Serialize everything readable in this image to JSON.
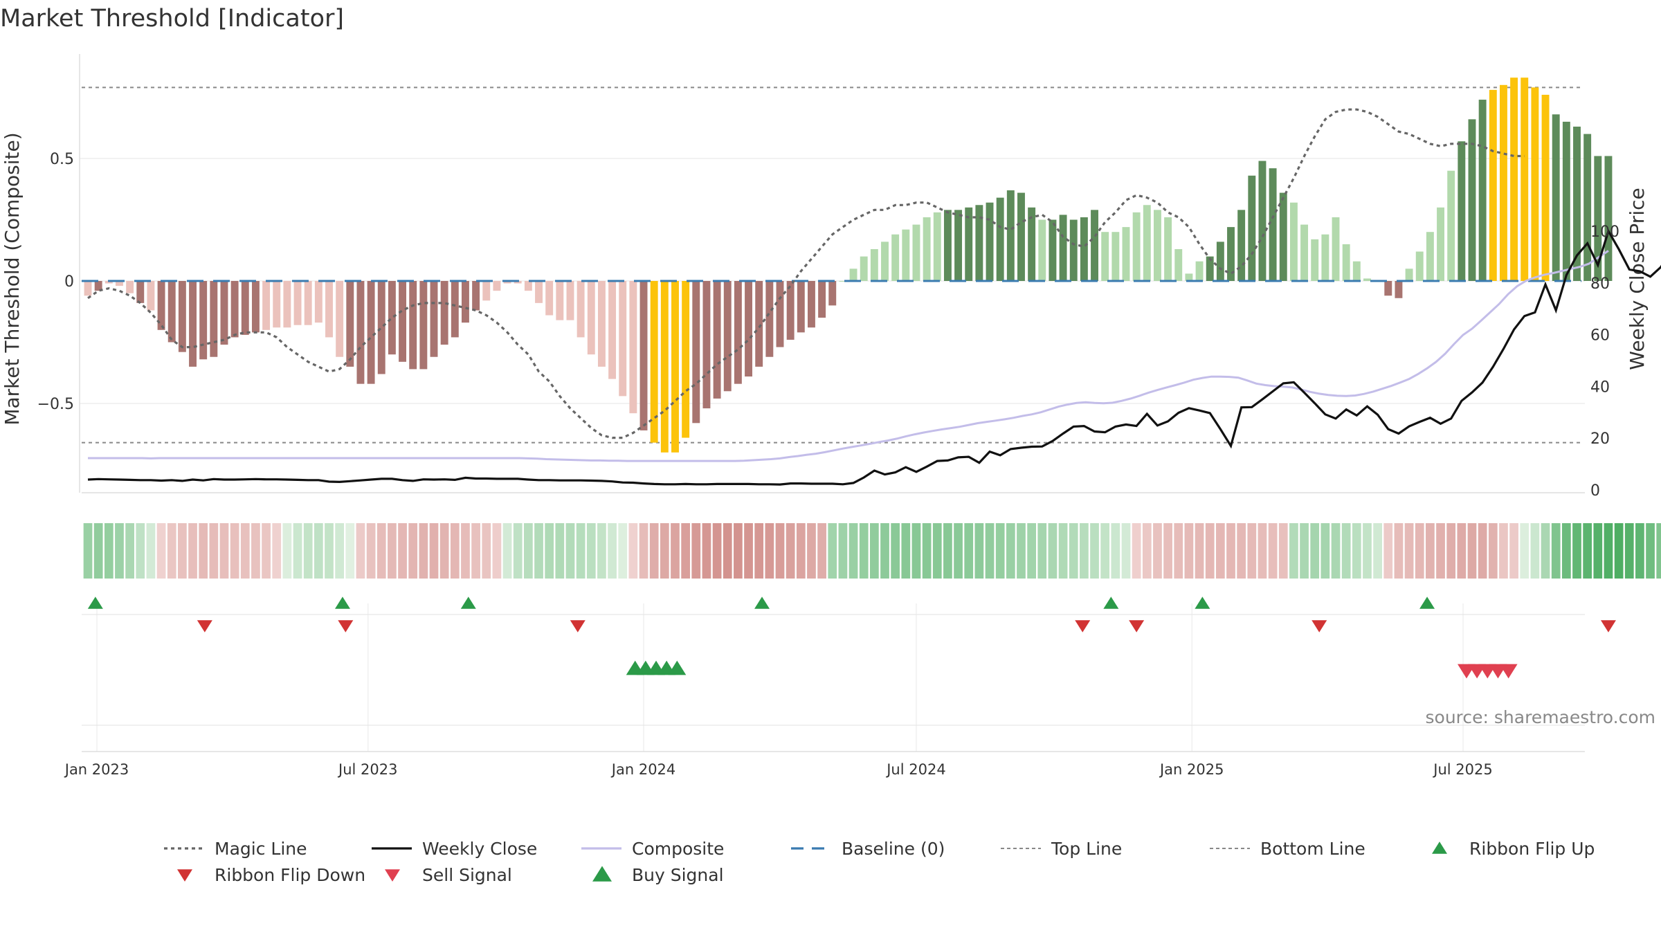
{
  "chart_data": {
    "type": "bar",
    "title": "Market Threshold [Indicator]",
    "source": "source: sharemaestro.com",
    "left_axis": {
      "label": "Market Threshold (Composite)",
      "ticks": [
        0.5,
        0,
        -0.5
      ],
      "tick_labels": [
        "0.5",
        "0",
        "−0.5"
      ],
      "ylim": [
        -0.86,
        0.92
      ]
    },
    "right_axis": {
      "label": "Weekly Close Price",
      "ticks": [
        0,
        20,
        40,
        60,
        80,
        100
      ],
      "tick_labels": [
        "0",
        "20",
        "40",
        "60",
        "80",
        "100"
      ],
      "ylim": [
        0,
        111
      ]
    },
    "x_axis": {
      "start": "2022-12-26",
      "step_days": 7,
      "ticks": [
        {
          "date": "2023-01-01",
          "label": "Jan 2023"
        },
        {
          "date": "2023-07-01",
          "label": "Jul 2023"
        },
        {
          "date": "2024-01-01",
          "label": "Jan 2024"
        },
        {
          "date": "2024-07-01",
          "label": "Jul 2024"
        },
        {
          "date": "2025-01-01",
          "label": "Jan 2025"
        },
        {
          "date": "2025-07-01",
          "label": "Jul 2025"
        }
      ]
    },
    "reference_lines": {
      "top": 0.79,
      "bottom": -0.66,
      "baseline": 0
    },
    "colors": {
      "neg_strong": "#a87470",
      "neg_weak": "#ebc2bc",
      "pos_strong": "#5d8b5a",
      "pos_weak": "#b2d9ac",
      "extreme": "#fcc30b",
      "close": "#111111",
      "composite": "#c3bde9",
      "magic": "#666666",
      "baseline": "#3a7bb0",
      "ref": "#888888",
      "flip_up": "#2b9a48",
      "flip_down": "#d13333",
      "sell": "#e04050",
      "buy": "#2b9a48"
    },
    "composite_values": [
      -0.06,
      -0.04,
      -0.01,
      -0.02,
      -0.05,
      -0.09,
      -0.12,
      -0.2,
      -0.25,
      -0.29,
      -0.35,
      -0.32,
      -0.31,
      -0.26,
      -0.23,
      -0.22,
      -0.21,
      -0.2,
      -0.19,
      -0.19,
      -0.18,
      -0.18,
      -0.17,
      -0.23,
      -0.31,
      -0.35,
      -0.42,
      -0.42,
      -0.38,
      -0.3,
      -0.33,
      -0.36,
      -0.36,
      -0.31,
      -0.26,
      -0.23,
      -0.17,
      -0.12,
      -0.08,
      -0.04,
      -0.01,
      -0.01,
      -0.04,
      -0.09,
      -0.14,
      -0.16,
      -0.16,
      -0.23,
      -0.3,
      -0.35,
      -0.4,
      -0.47,
      -0.54,
      -0.61,
      -0.66,
      -0.7,
      -0.7,
      -0.64,
      -0.58,
      -0.52,
      -0.48,
      -0.45,
      -0.42,
      -0.39,
      -0.35,
      -0.31,
      -0.27,
      -0.24,
      -0.21,
      -0.19,
      -0.15,
      -0.1,
      0,
      0.05,
      0.1,
      0.13,
      0.16,
      0.19,
      0.21,
      0.23,
      0.26,
      0.28,
      0.29,
      0.29,
      0.3,
      0.31,
      0.32,
      0.34,
      0.37,
      0.36,
      0.3,
      0.25,
      0.25,
      0.27,
      0.25,
      0.26,
      0.29,
      0.2,
      0.2,
      0.22,
      0.28,
      0.31,
      0.29,
      0.26,
      0.13,
      0.03,
      0.08,
      0.1,
      0.16,
      0.22,
      0.29,
      0.43,
      0.49,
      0.46,
      0.36,
      0.32,
      0.23,
      0.17,
      0.19,
      0.26,
      0.15,
      0.08,
      0.01,
      0,
      -0.06,
      -0.07,
      0.05,
      0.12,
      0.2,
      0.3,
      0.45,
      0.57,
      0.66,
      0.74,
      0.78,
      0.8,
      0.83,
      0.83,
      0.79,
      0.76,
      0.68,
      0.65,
      0.63,
      0.6,
      0.51,
      0.51
    ],
    "weekly_close": [
      4,
      4.2,
      4.1,
      4,
      3.9,
      3.8,
      3.8,
      3.6,
      3.8,
      3.5,
      4,
      3.7,
      4.2,
      4,
      4,
      4.1,
      4.2,
      4.1,
      4.1,
      4,
      3.9,
      3.8,
      3.8,
      3.2,
      3.1,
      3.4,
      3.7,
      4,
      4.3,
      4.3,
      3.8,
      3.5,
      4.1,
      4,
      4.1,
      3.9,
      4.7,
      4.4,
      4.4,
      4.3,
      4.3,
      4.3,
      4,
      3.8,
      3.8,
      3.7,
      3.7,
      3.7,
      3.6,
      3.5,
      3.3,
      2.9,
      2.8,
      2.5,
      2.3,
      2.2,
      2.2,
      2.3,
      2.2,
      2.2,
      2.3,
      2.3,
      2.3,
      2.3,
      2.2,
      2.2,
      2.1,
      2.5,
      2.5,
      2.4,
      2.4,
      2.4,
      2.2,
      2.7,
      4.8,
      7.5,
      6,
      6.8,
      8.8,
      7,
      9,
      11.2,
      11.4,
      12.6,
      12.8,
      10.5,
      14.8,
      13.4,
      15.8,
      16.3,
      16.7,
      16.8,
      18.9,
      21.8,
      24.5,
      24.7,
      22.6,
      22.3,
      24.5,
      25.3,
      24.7,
      29.4,
      24.9,
      26.5,
      29.8,
      31.6,
      30.7,
      29.7,
      23.5,
      17,
      31.9,
      32,
      35,
      38.1,
      41.2,
      41.6,
      37.6,
      33.5,
      29.2,
      27.6,
      31.1,
      28.8,
      32.3,
      29.1,
      23.5,
      21.8,
      24.6,
      26.3,
      27.9,
      25.6,
      27.6,
      34.4,
      37.7,
      41.5,
      47.6,
      54.5,
      62,
      67.2,
      68.6,
      79.4,
      69.4,
      83,
      90.6,
      95.3,
      86.9,
      100,
      93,
      85.2,
      84.5,
      82.4,
      86.1,
      92.3,
      108.7
    ],
    "composite_line": [
      12.3,
      12.3,
      12.3,
      12.3,
      12.3,
      12.3,
      12.3,
      12.2,
      12.3,
      12.3,
      12.3,
      12.3,
      12.3,
      12.3,
      12.3,
      12.3,
      12.3,
      12.3,
      12.3,
      12.3,
      12.3,
      12.3,
      12.3,
      12.3,
      12.3,
      12.3,
      12.3,
      12.3,
      12.3,
      12.3,
      12.3,
      12.3,
      12.3,
      12.3,
      12.3,
      12.3,
      12.3,
      12.3,
      12.3,
      12.3,
      12.3,
      12.3,
      12.3,
      12.3,
      12.3,
      12.3,
      12.3,
      12.3,
      12.3,
      12.2,
      12.1,
      11.9,
      11.8,
      11.7,
      11.6,
      11.5,
      11.4,
      11.4,
      11.3,
      11.3,
      11.2,
      11.2,
      11.2,
      11.2,
      11.2,
      11.2,
      11.2,
      11.2,
      11.2,
      11.2,
      11.2,
      11.2,
      11.2,
      11.3,
      11.5,
      11.7,
      11.9,
      12.2,
      12.7,
      13.1,
      13.6,
      14,
      14.6,
      15.3,
      16,
      16.6,
      17.2,
      17.8,
      18.5,
      19.1,
      19.8,
      20.7,
      21.5,
      22.2,
      22.8,
      23.4,
      23.9,
      24.4,
      25.1,
      25.8,
      26.3,
      26.8,
      27.3,
      27.9,
      28.6,
      29.2,
      30,
      31.1,
      32.2,
      33,
      33.6,
      33.9,
      33.6,
      33.5,
      33.7,
      34.4,
      35.3,
      36.4,
      37.6,
      38.6,
      39.6,
      40.5,
      41.5,
      42.6,
      43.3,
      43.8,
      43.8,
      43.7,
      43.4,
      42.3,
      41.1,
      40.5,
      40.1,
      39.9,
      39.6,
      38.8,
      37.9,
      37.2,
      36.7,
      36.4,
      36.3,
      36.5,
      37.1,
      38,
      39.1,
      40.2,
      41.5,
      42.9,
      44.8,
      47,
      49.5,
      52.6,
      56.4,
      59.9,
      62.3,
      65.4,
      68.6,
      71.8,
      75.6,
      78.7,
      80.8,
      82.1,
      83.1,
      83.8,
      84.6,
      85.4,
      86.2,
      87.4,
      89.7,
      92.4
    ],
    "magic_line": [
      -0.07,
      -0.04,
      -0.03,
      -0.04,
      -0.06,
      -0.09,
      -0.13,
      -0.18,
      -0.24,
      -0.27,
      -0.27,
      -0.26,
      -0.25,
      -0.24,
      -0.22,
      -0.21,
      -0.21,
      -0.21,
      -0.23,
      -0.27,
      -0.3,
      -0.33,
      -0.35,
      -0.37,
      -0.36,
      -0.32,
      -0.27,
      -0.23,
      -0.19,
      -0.15,
      -0.12,
      -0.1,
      -0.09,
      -0.09,
      -0.09,
      -0.1,
      -0.11,
      -0.12,
      -0.14,
      -0.17,
      -0.21,
      -0.26,
      -0.3,
      -0.37,
      -0.41,
      -0.47,
      -0.52,
      -0.56,
      -0.6,
      -0.63,
      -0.64,
      -0.64,
      -0.62,
      -0.59,
      -0.56,
      -0.53,
      -0.49,
      -0.45,
      -0.42,
      -0.38,
      -0.34,
      -0.31,
      -0.28,
      -0.24,
      -0.19,
      -0.13,
      -0.07,
      -0.02,
      0.04,
      0.09,
      0.14,
      0.19,
      0.22,
      0.25,
      0.27,
      0.29,
      0.29,
      0.31,
      0.31,
      0.32,
      0.32,
      0.3,
      0.28,
      0.27,
      0.26,
      0.26,
      0.25,
      0.22,
      0.21,
      0.24,
      0.26,
      0.27,
      0.24,
      0.18,
      0.15,
      0.14,
      0.18,
      0.24,
      0.28,
      0.33,
      0.35,
      0.34,
      0.32,
      0.28,
      0.26,
      0.22,
      0.15,
      0.09,
      0.05,
      0.03,
      0.06,
      0.11,
      0.18,
      0.26,
      0.34,
      0.42,
      0.51,
      0.59,
      0.66,
      0.69,
      0.7,
      0.7,
      0.69,
      0.67,
      0.64,
      0.61,
      0.6,
      0.58,
      0.56,
      0.55,
      0.56,
      0.56,
      0.56,
      0.55,
      0.53,
      0.52,
      0.51,
      0.51
    ],
    "ribbon_values": [
      0.45,
      0.5,
      0.48,
      0.43,
      0.35,
      0.22,
      0.1,
      -0.08,
      -0.2,
      -0.25,
      -0.28,
      -0.32,
      -0.3,
      -0.28,
      -0.26,
      -0.25,
      -0.24,
      -0.2,
      -0.08,
      0.05,
      0.15,
      0.2,
      0.22,
      0.2,
      0.12,
      0.02,
      -0.15,
      -0.24,
      -0.3,
      -0.33,
      -0.35,
      -0.37,
      -0.4,
      -0.42,
      -0.38,
      -0.35,
      -0.3,
      -0.25,
      -0.22,
      -0.12,
      0.1,
      0.22,
      0.27,
      0.3,
      0.32,
      0.32,
      0.3,
      0.28,
      0.25,
      0.2,
      0.12,
      0.04,
      -0.08,
      -0.3,
      -0.45,
      -0.5,
      -0.55,
      -0.6,
      -0.65,
      -0.68,
      -0.7,
      -0.72,
      -0.72,
      -0.7,
      -0.68,
      -0.66,
      -0.62,
      -0.58,
      -0.55,
      -0.5,
      -0.45,
      0.4,
      0.42,
      0.45,
      0.48,
      0.5,
      0.52,
      0.54,
      0.55,
      0.55,
      0.55,
      0.55,
      0.55,
      0.54,
      0.53,
      0.52,
      0.5,
      0.48,
      0.45,
      0.42,
      0.4,
      0.38,
      0.35,
      0.32,
      0.3,
      0.27,
      0.25,
      0.2,
      0.15,
      0.1,
      -0.1,
      -0.18,
      -0.24,
      -0.28,
      -0.3,
      -0.32,
      -0.34,
      -0.35,
      -0.35,
      -0.35,
      -0.34,
      -0.32,
      -0.3,
      -0.28,
      -0.26,
      0.3,
      0.35,
      0.38,
      0.38,
      0.35,
      0.3,
      0.25,
      0.2,
      0.12,
      -0.15,
      -0.3,
      -0.32,
      -0.35,
      -0.4,
      -0.42,
      -0.45,
      -0.48,
      -0.5,
      -0.48,
      -0.4,
      -0.2,
      -0.15,
      0.05,
      0.15,
      0.35,
      0.6,
      0.72,
      0.78,
      0.82,
      0.85,
      0.88,
      0.9,
      0.85,
      0.8,
      0.7,
      0.6,
      0.45,
      0.4,
      -0.2
    ],
    "markers": {
      "ribbon_flip_up": [
        "2022-12-31",
        "2023-06-14",
        "2023-09-06",
        "2024-03-20",
        "2024-11-08",
        "2025-01-08",
        "2025-06-07"
      ],
      "ribbon_flip_down": [
        "2023-03-14",
        "2023-06-16",
        "2023-11-18",
        "2024-10-20",
        "2024-11-25",
        "2025-03-27",
        "2025-10-06"
      ],
      "buy_signal": [
        "2023-12-30",
        "2024-01-06",
        "2024-01-13",
        "2024-01-20",
        "2024-01-27"
      ],
      "sell_signal": [
        "2025-07-01",
        "2025-07-08",
        "2025-07-15",
        "2025-07-22",
        "2025-07-29"
      ]
    },
    "legend": {
      "placement": "bottom",
      "items": [
        {
          "label": "Magic Line",
          "kind": "dotted",
          "color": "#666666"
        },
        {
          "label": "Weekly Close",
          "kind": "line",
          "color": "#111111"
        },
        {
          "label": "Composite",
          "kind": "line",
          "color": "#c3bde9"
        },
        {
          "label": "Baseline (0)",
          "kind": "dashed",
          "color": "#3a7bb0"
        },
        {
          "label": "Top Line",
          "kind": "dashed-thin",
          "color": "#888888"
        },
        {
          "label": "Bottom Line",
          "kind": "dashed-thin",
          "color": "#888888"
        },
        {
          "label": "Ribbon Flip Up",
          "kind": "tri-up",
          "color": "#2b9a48"
        },
        {
          "label": "Ribbon Flip Down",
          "kind": "tri-down",
          "color": "#d13333"
        },
        {
          "label": "Sell Signal",
          "kind": "tri-down",
          "color": "#e04050"
        },
        {
          "label": "Buy Signal",
          "kind": "tri-up",
          "color": "#2b9a48"
        }
      ]
    }
  }
}
